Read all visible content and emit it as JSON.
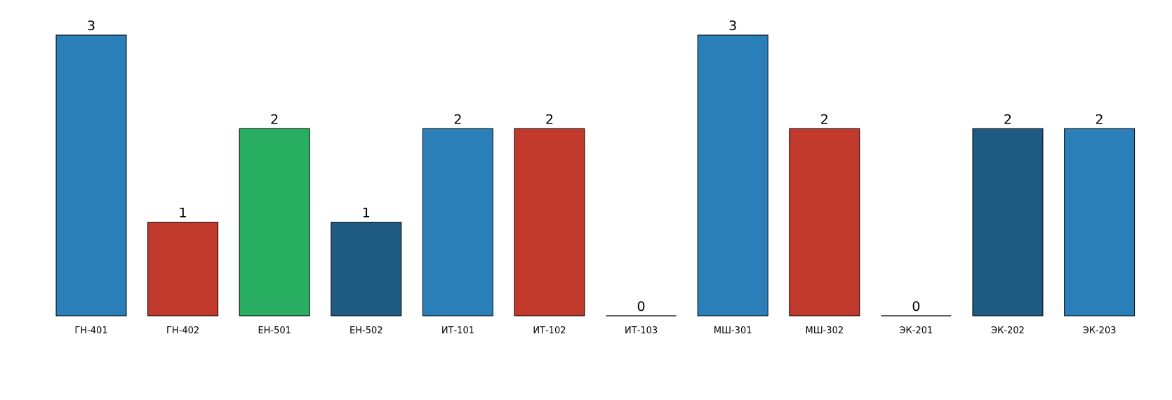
{
  "chart_data": {
    "type": "bar",
    "title": "",
    "xlabel": "",
    "ylabel": "",
    "ylim": [
      0,
      3
    ],
    "grid": false,
    "legend": "none",
    "categories": [
      "ГН-401",
      "ГН-402",
      "ЕН-501",
      "ЕН-502",
      "ИТ-101",
      "ИТ-102",
      "ИТ-103",
      "МШ-301",
      "МШ-302",
      "ЭК-201",
      "ЭК-202",
      "ЭК-203"
    ],
    "values": [
      3,
      1,
      2,
      1,
      2,
      2,
      0,
      3,
      2,
      0,
      2,
      2
    ],
    "colors": [
      "#2b7fb8",
      "#c0392b",
      "#27ae60",
      "#1f5a82",
      "#2b7fb8",
      "#c0392b",
      "#2b7fb8",
      "#2b7fb8",
      "#c0392b",
      "#2b7fb8",
      "#1f5a82",
      "#2b7fb8"
    ],
    "bar_edge_color": "#000000"
  }
}
